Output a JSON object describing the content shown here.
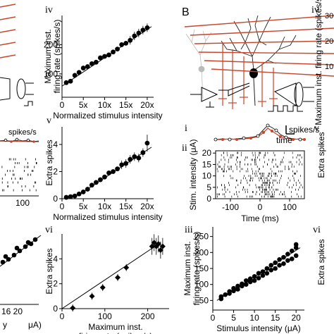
{
  "panel_letters": {
    "B": "B"
  },
  "fragments": {
    "spikes_s": "spikes/s",
    "tick_100": "100",
    "tick_16_20": "16  20",
    "unit_ua": "μA)",
    "frag_y": "y",
    "right_v": "v",
    "right_vi": "vi",
    "right_iv": "iv",
    "right_30": "30",
    "right_20": "20",
    "right_10": "10",
    "right_ylabel": "Maximum inst. firing rate (spikes/s)",
    "right_extra": "Extra spikes"
  },
  "panel_B": {
    "i_label": "i",
    "ii_label": "ii",
    "iii_label": "iii",
    "scale_label": "spikes/s",
    "time_label": "time"
  },
  "chart_data": [
    {
      "type": "scatter",
      "panel": "iv",
      "xlabel": "Normalized stimulus intensity",
      "ylabel": "Maximum inst. firing rate (spikes/s)",
      "xticks": [
        "0",
        "5x",
        "10x",
        "15x",
        "20x"
      ],
      "xtick_values": [
        0,
        5,
        10,
        15,
        20
      ],
      "yticks": [
        "100",
        "200"
      ],
      "ytick_values": [
        100,
        200
      ],
      "xlim": [
        0,
        21.5
      ],
      "ylim": [
        20,
        300
      ],
      "x": [
        1,
        2,
        3,
        4,
        5,
        6,
        7,
        8,
        9,
        10,
        11,
        12,
        13,
        14,
        15,
        16,
        17,
        18,
        19,
        20
      ],
      "y": [
        70,
        75,
        95,
        105,
        120,
        125,
        135,
        140,
        155,
        160,
        165,
        175,
        185,
        200,
        205,
        215,
        230,
        240,
        250,
        258
      ],
      "fit": [
        [
          0,
          58
        ],
        [
          21,
          262
        ]
      ]
    },
    {
      "type": "scatter",
      "panel": "v",
      "xlabel": "Normalized stimulus intensity",
      "ylabel": "Extra spikes",
      "xticks": [
        "0",
        "5x",
        "10x",
        "15x",
        "20x"
      ],
      "xtick_values": [
        0,
        5,
        10,
        15,
        20
      ],
      "yticks": [
        "0",
        "2",
        "4"
      ],
      "ytick_values": [
        0,
        2,
        4
      ],
      "xlim": [
        0,
        21.5
      ],
      "ylim": [
        0,
        5.3
      ],
      "x": [
        1,
        2,
        3,
        4,
        5,
        6,
        7,
        8,
        9,
        10,
        11,
        12,
        13,
        14,
        15,
        16,
        17,
        18,
        19,
        20
      ],
      "y": [
        0.1,
        0.15,
        0.2,
        0.35,
        0.5,
        0.7,
        1.0,
        1.2,
        1.4,
        1.6,
        1.9,
        2.0,
        2.2,
        2.5,
        2.6,
        2.9,
        3.1,
        3.0,
        3.4,
        4.1
      ],
      "fit": [
        [
          4,
          0.3
        ],
        [
          21,
          3.8
        ]
      ]
    },
    {
      "type": "scatter",
      "panel": "vi",
      "xlabel": "Maximum inst. firing rate (spikes/s)",
      "ylabel": "Extra spikes",
      "xticks": [
        "0",
        "100",
        "200"
      ],
      "xtick_values": [
        0,
        100,
        200
      ],
      "yticks": [
        "0",
        "2",
        "4"
      ],
      "ytick_values": [
        0,
        2,
        4
      ],
      "xlim": [
        0,
        250
      ],
      "ylim": [
        0,
        6
      ],
      "x": [
        25,
        70,
        95,
        130,
        150,
        210,
        215,
        220,
        225,
        230,
        235
      ],
      "y": [
        0.05,
        1.0,
        1.7,
        2.5,
        3.3,
        5.0,
        5.3,
        5.0,
        5.2,
        4.7,
        5.0
      ],
      "fit": [
        [
          0,
          0
        ],
        [
          230,
          5.3
        ]
      ]
    },
    {
      "type": "scatter",
      "panel": "iii",
      "xlabel": "Stimulus intensity (μA)",
      "ylabel": "Maximum inst. firing rate (spikes/s)",
      "xticks": [
        "0",
        "5",
        "10",
        "15",
        "20"
      ],
      "xtick_values": [
        0,
        5,
        10,
        15,
        20
      ],
      "yticks": [
        "50",
        "100",
        "150",
        "200",
        "250"
      ],
      "ytick_values": [
        50,
        100,
        150,
        200,
        250
      ],
      "xlim": [
        0,
        22
      ],
      "ylim": [
        20,
        280
      ],
      "x": [
        2,
        2,
        3,
        4,
        4,
        5,
        5,
        6,
        6,
        7,
        7,
        8,
        8,
        9,
        9,
        10,
        10,
        11,
        11,
        12,
        12,
        13,
        13,
        14,
        14,
        15,
        15,
        16,
        16,
        17,
        17,
        18,
        18,
        19,
        19,
        20,
        20,
        20
      ],
      "y": [
        55,
        62,
        68,
        72,
        78,
        80,
        88,
        85,
        95,
        95,
        102,
        100,
        112,
        108,
        118,
        112,
        125,
        120,
        135,
        128,
        140,
        135,
        150,
        145,
        160,
        150,
        168,
        160,
        178,
        165,
        185,
        175,
        195,
        180,
        205,
        190,
        215,
        225
      ],
      "fit": [
        [
          1,
          50
        ],
        [
          21,
          215
        ]
      ]
    },
    {
      "type": "raster",
      "panel": "ii",
      "xlabel": "Time (ms)",
      "ylabel": "Stim. intensity (μA)",
      "xticks": [
        "-100",
        "0",
        "100"
      ],
      "xtick_values": [
        -100,
        0,
        100
      ],
      "yticks": [
        "0",
        "5",
        "10",
        "15",
        "20"
      ],
      "ytick_values": [
        0,
        5,
        10,
        15,
        20
      ],
      "xlim": [
        -150,
        150
      ],
      "ylim": [
        0,
        21
      ]
    }
  ]
}
